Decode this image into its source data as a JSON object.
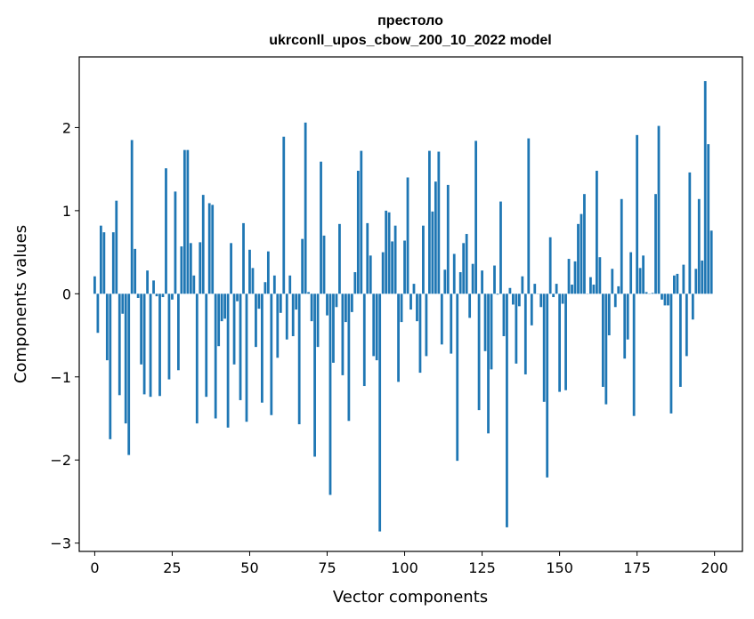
{
  "chart_data": {
    "type": "bar",
    "title": "престоло",
    "subtitle": "ukrconll_upos_cbow_200_10_2022 model",
    "xlabel": "Vector components",
    "ylabel": "Components values",
    "xlim": [
      -5,
      209
    ],
    "ylim": [
      -3.1,
      2.85
    ],
    "xticks": [
      0,
      25,
      50,
      75,
      100,
      125,
      150,
      175,
      200
    ],
    "yticks": [
      -3,
      -2,
      -1,
      0,
      1,
      2
    ],
    "ytick_labels": [
      "−3",
      "−2",
      "−1",
      "0",
      "1",
      "2"
    ],
    "grid": false,
    "color": "#1f77b4",
    "x": [
      0,
      1,
      2,
      3,
      4,
      5,
      6,
      7,
      8,
      9,
      10,
      11,
      12,
      13,
      14,
      15,
      16,
      17,
      18,
      19,
      20,
      21,
      22,
      23,
      24,
      25,
      26,
      27,
      28,
      29,
      30,
      31,
      32,
      33,
      34,
      35,
      36,
      37,
      38,
      39,
      40,
      41,
      42,
      43,
      44,
      45,
      46,
      47,
      48,
      49,
      50,
      51,
      52,
      53,
      54,
      55,
      56,
      57,
      58,
      59,
      60,
      61,
      62,
      63,
      64,
      65,
      66,
      67,
      68,
      69,
      70,
      71,
      72,
      73,
      74,
      75,
      76,
      77,
      78,
      79,
      80,
      81,
      82,
      83,
      84,
      85,
      86,
      87,
      88,
      89,
      90,
      91,
      92,
      93,
      94,
      95,
      96,
      97,
      98,
      99,
      100,
      101,
      102,
      103,
      104,
      105,
      106,
      107,
      108,
      109,
      110,
      111,
      112,
      113,
      114,
      115,
      116,
      117,
      118,
      119,
      120,
      121,
      122,
      123,
      124,
      125,
      126,
      127,
      128,
      129,
      130,
      131,
      132,
      133,
      134,
      135,
      136,
      137,
      138,
      139,
      140,
      141,
      142,
      143,
      144,
      145,
      146,
      147,
      148,
      149,
      150,
      151,
      152,
      153,
      154,
      155,
      156,
      157,
      158,
      159,
      160,
      161,
      162,
      163,
      164,
      165,
      166,
      167,
      168,
      169,
      170,
      171,
      172,
      173,
      174,
      175,
      176,
      177,
      178,
      179,
      180,
      181,
      182,
      183,
      184,
      185,
      186,
      187,
      188,
      189,
      190,
      191,
      192,
      193,
      194,
      195,
      196,
      197,
      198,
      199
    ],
    "values": [
      0.21,
      -0.47,
      0.82,
      0.74,
      -0.8,
      -1.75,
      0.74,
      1.12,
      -1.22,
      -0.24,
      -1.56,
      -1.94,
      1.85,
      0.54,
      -0.05,
      -0.85,
      -1.21,
      0.28,
      -1.24,
      0.16,
      -0.03,
      -1.23,
      -0.04,
      1.51,
      -1.03,
      -0.07,
      1.23,
      -0.92,
      0.57,
      1.73,
      1.73,
      0.61,
      0.22,
      -1.56,
      0.62,
      1.19,
      -1.24,
      1.09,
      1.07,
      -1.5,
      -0.63,
      -0.33,
      -0.3,
      -1.61,
      0.61,
      -0.85,
      -0.09,
      -1.28,
      0.85,
      -1.54,
      0.53,
      0.31,
      -0.64,
      -0.18,
      -1.31,
      0.14,
      0.51,
      -1.46,
      0.22,
      -0.77,
      -0.23,
      1.89,
      -0.55,
      0.22,
      -0.51,
      -0.19,
      -1.57,
      0.66,
      2.06,
      0.02,
      -0.33,
      -1.96,
      -0.64,
      1.59,
      0.7,
      -0.26,
      -2.42,
      -0.83,
      -0.16,
      0.84,
      -0.98,
      -0.34,
      -1.53,
      -0.22,
      0.26,
      1.48,
      1.72,
      -1.11,
      0.85,
      0.46,
      -0.75,
      -0.8,
      -2.86,
      0.5,
      1.0,
      0.98,
      0.63,
      0.82,
      -1.06,
      -0.34,
      0.64,
      1.4,
      -0.19,
      0.12,
      -0.33,
      -0.95,
      0.82,
      -0.75,
      1.72,
      0.99,
      1.35,
      1.71,
      -0.61,
      0.29,
      1.31,
      -0.72,
      0.48,
      -2.01,
      0.26,
      0.61,
      0.72,
      -0.29,
      0.36,
      1.84,
      -1.4,
      0.28,
      -0.69,
      -1.68,
      -0.91,
      0.34,
      -0.01,
      1.11,
      -0.51,
      -2.81,
      0.07,
      -0.13,
      -0.84,
      -0.15,
      0.21,
      -0.97,
      1.87,
      -0.38,
      0.12,
      0.0,
      -0.16,
      -1.3,
      -2.21,
      0.68,
      -0.04,
      0.12,
      -1.18,
      -0.12,
      -1.16,
      0.42,
      0.11,
      0.39,
      0.84,
      0.96,
      1.2,
      0.0,
      0.2,
      0.11,
      1.48,
      0.44,
      -1.12,
      -1.33,
      -0.5,
      0.3,
      -0.16,
      0.09,
      1.14,
      -0.78,
      -0.55,
      0.5,
      -1.47,
      1.91,
      0.31,
      0.46,
      0.02,
      0.0,
      0.01,
      1.2,
      2.02,
      -0.07,
      -0.14,
      -0.14,
      -1.44,
      0.22,
      0.24,
      -1.12,
      0.35,
      -0.75,
      1.46,
      -0.31,
      0.3,
      1.14,
      0.4,
      2.56,
      1.8,
      0.76
    ]
  }
}
